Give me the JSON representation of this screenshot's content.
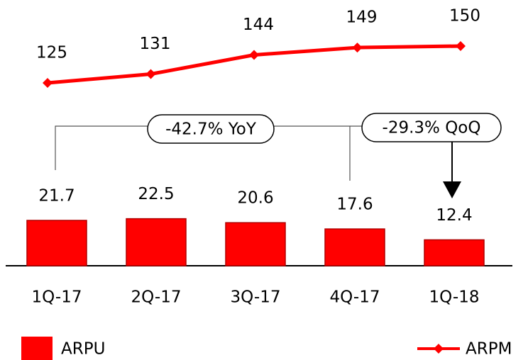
{
  "chart_data": {
    "type": "bar",
    "categories": [
      "1Q-17",
      "2Q-17",
      "3Q-17",
      "4Q-17",
      "1Q-18"
    ],
    "series": [
      {
        "name": "ARPU",
        "color": "#ff0000",
        "values": [
          21.7,
          22.5,
          20.6,
          17.6,
          12.4
        ]
      },
      {
        "name": "ARPM",
        "color": "#ff0000",
        "axis": "y2",
        "values": [
          125,
          131,
          144,
          149,
          150
        ]
      }
    ],
    "ylim": [
      0,
      100
    ],
    "y2lim": [
      100,
      150
    ],
    "annotations": [
      "-42.7% YoY",
      "-29.3% QoQ"
    ]
  }
}
